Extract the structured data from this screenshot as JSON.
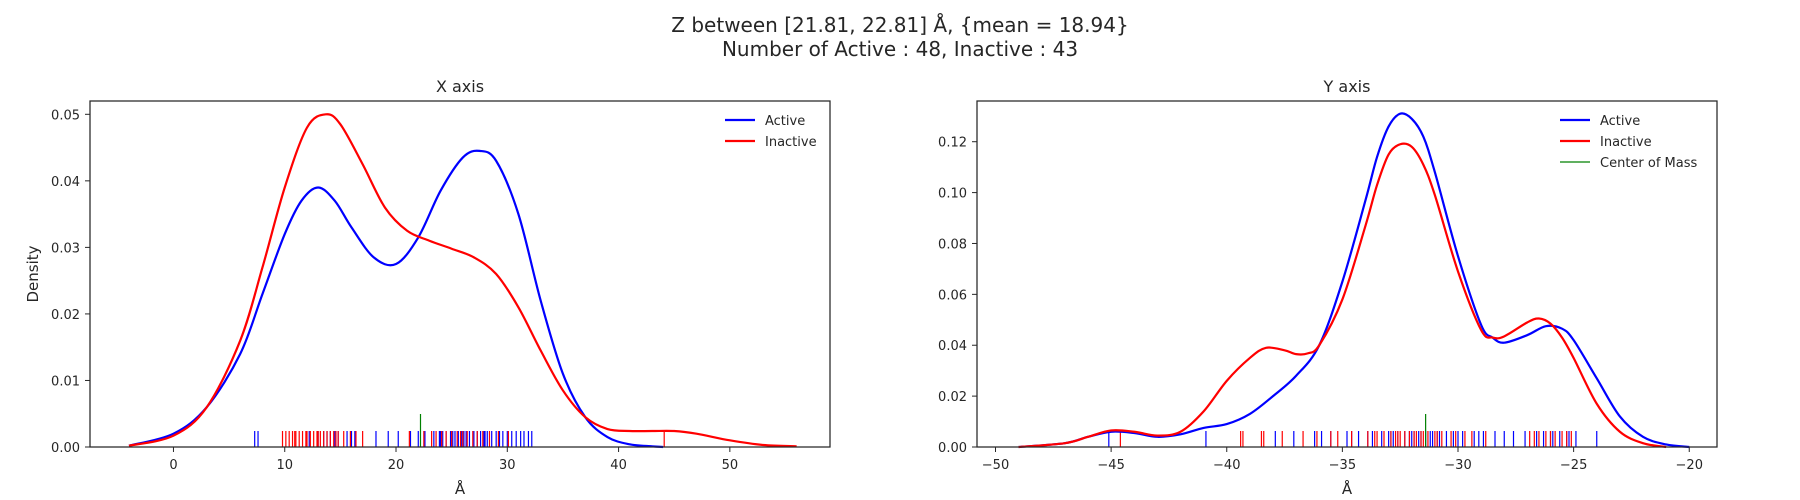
{
  "figure": {
    "suptitle_line1": "Z between [21.81, 22.81] Å, {mean = 18.94}",
    "suptitle_line2": "Number of Active : 48, Inactive : 43"
  },
  "colors": {
    "active": "#0000ff",
    "inactive": "#ff0000",
    "center": "#008000"
  },
  "chart_data": [
    {
      "type": "line",
      "title": "X axis",
      "xlabel": "Å",
      "ylabel": "Density",
      "xlim": [
        -7.5,
        59
      ],
      "ylim": [
        0,
        0.052
      ],
      "xticks": [
        0,
        10,
        20,
        30,
        40,
        50
      ],
      "xtick_labels": [
        "0",
        "10",
        "20",
        "30",
        "40",
        "50"
      ],
      "yticks": [
        0.0,
        0.01,
        0.02,
        0.03,
        0.04,
        0.05
      ],
      "ytick_labels": [
        "0.00",
        "0.01",
        "0.02",
        "0.03",
        "0.04",
        "0.05"
      ],
      "grid": false,
      "legend_position": "top-right",
      "series": [
        {
          "name": "Active",
          "color": "#0000ff",
          "x": [
            -4,
            0,
            3,
            6,
            8,
            10,
            11.5,
            13,
            14.5,
            16,
            18,
            20,
            22,
            24,
            26,
            27.5,
            29,
            31,
            33,
            35,
            37,
            39,
            41,
            43,
            44
          ],
          "y": [
            0.0002,
            0.002,
            0.006,
            0.014,
            0.023,
            0.032,
            0.037,
            0.039,
            0.037,
            0.033,
            0.0285,
            0.0275,
            0.0315,
            0.0385,
            0.0435,
            0.0445,
            0.043,
            0.035,
            0.022,
            0.011,
            0.0045,
            0.0015,
            0.0004,
            0.0001,
            0.0
          ]
        },
        {
          "name": "Inactive",
          "color": "#ff0000",
          "x": [
            -4,
            0,
            3,
            6,
            8,
            10,
            12,
            13.7,
            15,
            17,
            19,
            21,
            23,
            25,
            27,
            29,
            31,
            33,
            35,
            37,
            39,
            41,
            43,
            45,
            47,
            50,
            53,
            56
          ],
          "y": [
            0.0002,
            0.0017,
            0.006,
            0.016,
            0.027,
            0.039,
            0.048,
            0.05,
            0.0485,
            0.0425,
            0.036,
            0.0325,
            0.031,
            0.0298,
            0.0285,
            0.026,
            0.021,
            0.0145,
            0.0085,
            0.0045,
            0.0027,
            0.0024,
            0.0024,
            0.0024,
            0.002,
            0.001,
            0.0003,
            0.0001
          ]
        }
      ],
      "rug": {
        "active": [
          7.3,
          7.6,
          12.2,
          13.0,
          13.5,
          14.1,
          14.5,
          14.8,
          15.6,
          16.0,
          16.3,
          18.2,
          19.3,
          20.2,
          22.0,
          23.4,
          23.9,
          24.2,
          24.5,
          24.9,
          25.3,
          25.6,
          25.9,
          26.3,
          26.6,
          27.0,
          27.3,
          27.6,
          27.9,
          28.2,
          28.6,
          29.0,
          29.3,
          29.6,
          30.0,
          30.4,
          30.8,
          31.2,
          31.5,
          31.9,
          32.2,
          22.6,
          21.3,
          24.0,
          26.1,
          28.0,
          25.1,
          13.8
        ],
        "inactive": [
          9.8,
          10.1,
          10.4,
          10.7,
          11.0,
          11.3,
          11.6,
          11.9,
          12.3,
          12.6,
          12.9,
          13.2,
          13.5,
          13.8,
          14.1,
          14.4,
          14.8,
          15.3,
          15.9,
          16.4,
          17.0,
          21.2,
          22.5,
          23.6,
          24.1,
          24.5,
          25.0,
          25.5,
          26.0,
          26.4,
          26.9,
          27.3,
          27.8,
          28.4,
          29.2,
          30.1,
          44.1,
          10.9,
          12.0,
          13.0,
          14.6,
          23.2,
          25.8
        ],
        "center": 22.2
      }
    },
    {
      "type": "line",
      "title": "Y axis",
      "xlabel": "Å",
      "ylabel": "",
      "xlim": [
        -50.8,
        -18.8
      ],
      "ylim": [
        0,
        0.136
      ],
      "xticks": [
        -50,
        -45,
        -40,
        -35,
        -30,
        -25,
        -20
      ],
      "xtick_labels": [
        "−50",
        "−45",
        "−40",
        "−35",
        "−30",
        "−25",
        "−20"
      ],
      "yticks": [
        0.0,
        0.02,
        0.04,
        0.06,
        0.08,
        0.1,
        0.12
      ],
      "ytick_labels": [
        "0.00",
        "0.02",
        "0.04",
        "0.06",
        "0.08",
        "0.10",
        "0.12"
      ],
      "grid": false,
      "legend_position": "top-right",
      "series": [
        {
          "name": "Active",
          "color": "#0000ff",
          "x": [
            -49,
            -47,
            -46,
            -45,
            -44,
            -43,
            -42,
            -41,
            -40,
            -39,
            -38,
            -37,
            -36,
            -35,
            -34,
            -33.5,
            -33,
            -32.5,
            -32,
            -31.5,
            -31,
            -30,
            -29,
            -28.5,
            -28,
            -27,
            -26.2,
            -25.5,
            -25,
            -24,
            -23,
            -22,
            -21,
            -20
          ],
          "y": [
            0.0,
            0.0015,
            0.004,
            0.006,
            0.0055,
            0.004,
            0.005,
            0.0075,
            0.009,
            0.013,
            0.02,
            0.028,
            0.04,
            0.065,
            0.097,
            0.114,
            0.126,
            0.131,
            0.129,
            0.122,
            0.108,
            0.075,
            0.048,
            0.043,
            0.041,
            0.044,
            0.0475,
            0.0465,
            0.042,
            0.027,
            0.012,
            0.004,
            0.001,
            0.0
          ]
        },
        {
          "name": "Inactive",
          "color": "#ff0000",
          "x": [
            -49,
            -47,
            -46,
            -45,
            -44,
            -43,
            -42,
            -41,
            -40,
            -39,
            -38.3,
            -37.5,
            -37,
            -36.5,
            -36,
            -35,
            -34,
            -33.5,
            -33,
            -32.5,
            -32,
            -31.5,
            -31,
            -30,
            -29,
            -28.5,
            -28,
            -27,
            -26.5,
            -26,
            -25.5,
            -25,
            -24,
            -23,
            -22,
            -21
          ],
          "y": [
            0.0,
            0.0015,
            0.004,
            0.0065,
            0.006,
            0.0045,
            0.006,
            0.014,
            0.026,
            0.035,
            0.039,
            0.038,
            0.0365,
            0.0368,
            0.04,
            0.058,
            0.087,
            0.103,
            0.115,
            0.119,
            0.118,
            0.111,
            0.099,
            0.069,
            0.046,
            0.043,
            0.0435,
            0.049,
            0.0505,
            0.0485,
            0.043,
            0.035,
            0.017,
            0.006,
            0.0015,
            0.0
          ]
        }
      ],
      "extra_legend": {
        "name": "Center of Mass",
        "color": "#008000"
      },
      "rug": {
        "active": [
          -45.1,
          -40.9,
          -37.9,
          -37.1,
          -36.2,
          -35.5,
          -34.8,
          -34.3,
          -33.7,
          -33.3,
          -32.9,
          -32.6,
          -32.3,
          -32.0,
          -31.7,
          -31.4,
          -31.1,
          -30.8,
          -30.5,
          -30.2,
          -29.8,
          -29.3,
          -28.9,
          -28.4,
          -27.6,
          -27.1,
          -26.6,
          -26.3,
          -25.9,
          -25.6,
          -25.3,
          -24.9,
          -24.0,
          -33.0,
          -32.1,
          -31.6,
          -30.9,
          -30.0,
          -33.9,
          -32.8,
          -31.9,
          -31.2,
          -26.0,
          -25.2,
          -29.1,
          -28.0,
          -34.6,
          -35.9
        ],
        "inactive": [
          -44.6,
          -39.4,
          -39.3,
          -38.5,
          -38.4,
          -37.6,
          -36.7,
          -36.1,
          -35.5,
          -35.2,
          -34.6,
          -33.9,
          -33.6,
          -33.2,
          -32.9,
          -32.7,
          -32.5,
          -32.3,
          -32.1,
          -31.9,
          -31.6,
          -31.3,
          -31.0,
          -30.7,
          -30.3,
          -29.7,
          -29.4,
          -28.8,
          -26.9,
          -26.5,
          -26.2,
          -25.8,
          -25.5,
          -25.1,
          -33.5,
          -32.6,
          -31.8,
          -31.5,
          -30.9,
          -30.1,
          -26.7,
          -26.0,
          -25.3
        ],
        "center": -31.4
      }
    }
  ]
}
